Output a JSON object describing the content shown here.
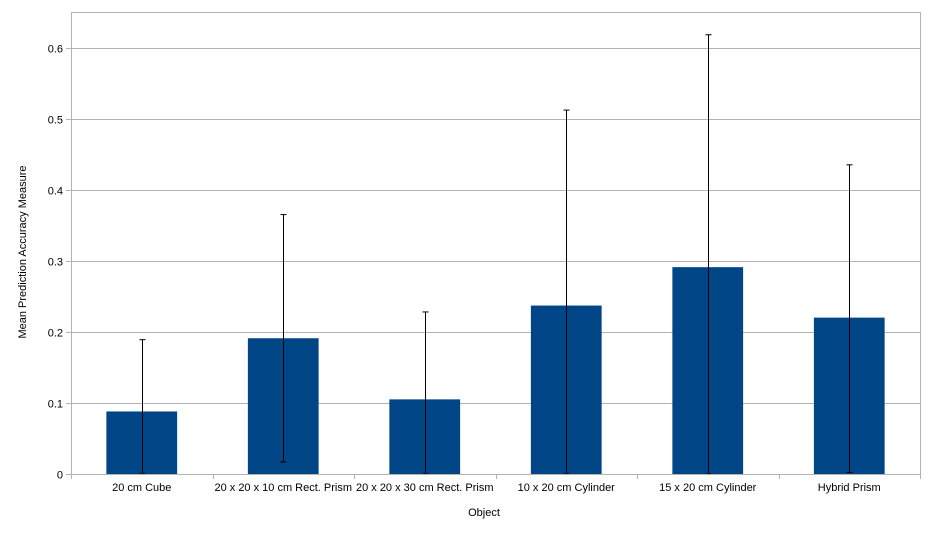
{
  "chart_data": {
    "type": "bar",
    "title": "",
    "xlabel": "Object",
    "ylabel": "Mean Prediction Accuracy Measure",
    "categories": [
      "20 cm Cube",
      "20 x 20 x 10 cm Rect. Prism",
      "20 x 20 x 30 cm Rect. Prism",
      "10 x 20 cm Cylinder",
      "15 x 20 cm Cylinder",
      "Hybrid Prism"
    ],
    "values": [
      0.088,
      0.191,
      0.105,
      0.237,
      0.291,
      0.22
    ],
    "error_low": [
      0.0,
      0.017,
      0.0,
      0.0,
      0.0,
      0.002
    ],
    "error_high": [
      0.189,
      0.365,
      0.228,
      0.512,
      0.618,
      0.435
    ],
    "ylim": [
      0,
      0.65
    ],
    "yticks": [
      0,
      0.1,
      0.2,
      0.3,
      0.4,
      0.5,
      0.6
    ],
    "ytick_labels": [
      "0",
      "0.1",
      "0.2",
      "0.3",
      "0.4",
      "0.5",
      "0.6"
    ],
    "grid": true,
    "legend": "none",
    "colors": {
      "bar": "#004586",
      "grid": "#b3b3b3",
      "error_bar": "#000000"
    }
  }
}
